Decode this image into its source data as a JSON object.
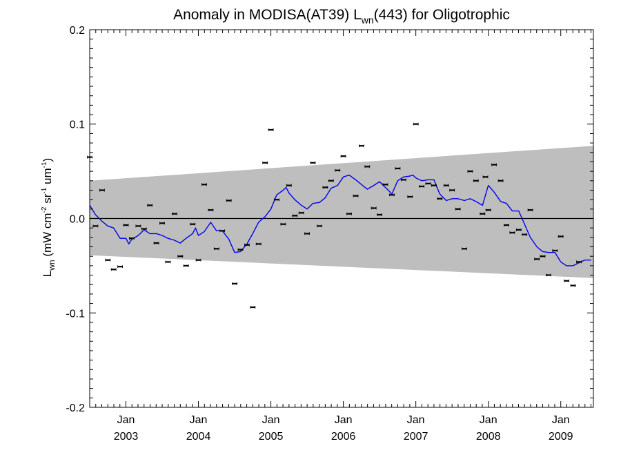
{
  "chart_data": {
    "type": "line",
    "title": {
      "prefix": "Anomaly in MODISA(AT39) L",
      "subscript": "wn",
      "suffix": "(443) for Oligotrophic"
    },
    "ylabel": {
      "main": "L",
      "sub": "wn",
      "unit_open": " (mW cm",
      "unit_exp1": "-2",
      "unit_mid1": " sr",
      "unit_exp2": "-1",
      "unit_mid2": " um",
      "unit_exp3": "-1",
      "unit_close": ")"
    },
    "xlim": [
      2002.5,
      2009.45
    ],
    "ylim": [
      -0.2,
      0.2
    ],
    "y_ticks": [
      {
        "value": 0.2,
        "label": "0.2"
      },
      {
        "value": 0.1,
        "label": "0.1"
      },
      {
        "value": 0.0,
        "label": "0.0"
      },
      {
        "value": -0.1,
        "label": "-0.1"
      },
      {
        "value": -0.2,
        "label": "-0.2"
      }
    ],
    "x_ticks": [
      {
        "value": 2003.0,
        "month": "Jan",
        "year": "2003"
      },
      {
        "value": 2004.0,
        "month": "Jan",
        "year": "2004"
      },
      {
        "value": 2005.0,
        "month": "Jan",
        "year": "2005"
      },
      {
        "value": 2006.0,
        "month": "Jan",
        "year": "2006"
      },
      {
        "value": 2007.0,
        "month": "Jan",
        "year": "2007"
      },
      {
        "value": 2008.0,
        "month": "Jan",
        "year": "2008"
      },
      {
        "value": 2009.0,
        "month": "Jan",
        "year": "2009"
      }
    ],
    "zero_line": 0.0,
    "confidence_band": {
      "color": "#bebebe",
      "x": [
        2002.5,
        2009.45
      ],
      "upper": [
        0.04,
        0.077
      ],
      "lower": [
        -0.039,
        -0.063
      ]
    },
    "series": [
      {
        "type": "line",
        "color": "#0000ee",
        "points": [
          [
            2002.5,
            0.014
          ],
          [
            2002.58,
            0.004
          ],
          [
            2002.67,
            -0.003
          ],
          [
            2002.75,
            -0.008
          ],
          [
            2002.83,
            -0.01
          ],
          [
            2002.92,
            -0.021
          ],
          [
            2003.0,
            -0.021
          ],
          [
            2003.04,
            -0.027
          ],
          [
            2003.08,
            -0.022
          ],
          [
            2003.17,
            -0.018
          ],
          [
            2003.25,
            -0.012
          ],
          [
            2003.33,
            -0.016
          ],
          [
            2003.42,
            -0.016
          ],
          [
            2003.5,
            -0.018
          ],
          [
            2003.58,
            -0.021
          ],
          [
            2003.67,
            -0.023
          ],
          [
            2003.75,
            -0.026
          ],
          [
            2003.83,
            -0.021
          ],
          [
            2003.92,
            -0.016
          ],
          [
            2003.96,
            -0.01
          ],
          [
            2004.0,
            -0.018
          ],
          [
            2004.08,
            -0.014
          ],
          [
            2004.17,
            -0.004
          ],
          [
            2004.25,
            -0.013
          ],
          [
            2004.33,
            -0.013
          ],
          [
            2004.42,
            -0.022
          ],
          [
            2004.5,
            -0.036
          ],
          [
            2004.58,
            -0.035
          ],
          [
            2004.67,
            -0.027
          ],
          [
            2004.75,
            -0.016
          ],
          [
            2004.83,
            -0.004
          ],
          [
            2004.92,
            0.002
          ],
          [
            2005.0,
            0.01
          ],
          [
            2005.08,
            0.025
          ],
          [
            2005.17,
            0.03
          ],
          [
            2005.21,
            0.033
          ],
          [
            2005.25,
            0.027
          ],
          [
            2005.33,
            0.02
          ],
          [
            2005.42,
            0.014
          ],
          [
            2005.5,
            0.01
          ],
          [
            2005.58,
            0.016
          ],
          [
            2005.67,
            0.017
          ],
          [
            2005.75,
            0.022
          ],
          [
            2005.83,
            0.032
          ],
          [
            2005.92,
            0.035
          ],
          [
            2006.0,
            0.044
          ],
          [
            2006.08,
            0.046
          ],
          [
            2006.17,
            0.041
          ],
          [
            2006.25,
            0.036
          ],
          [
            2006.33,
            0.031
          ],
          [
            2006.42,
            0.035
          ],
          [
            2006.5,
            0.039
          ],
          [
            2006.58,
            0.033
          ],
          [
            2006.67,
            0.026
          ],
          [
            2006.75,
            0.04
          ],
          [
            2006.83,
            0.044
          ],
          [
            2006.92,
            0.045
          ],
          [
            2006.96,
            0.046
          ],
          [
            2007.0,
            0.043
          ],
          [
            2007.08,
            0.04
          ],
          [
            2007.17,
            0.041
          ],
          [
            2007.25,
            0.041
          ],
          [
            2007.33,
            0.026
          ],
          [
            2007.42,
            0.019
          ],
          [
            2007.5,
            0.021
          ],
          [
            2007.58,
            0.021
          ],
          [
            2007.67,
            0.019
          ],
          [
            2007.75,
            0.021
          ],
          [
            2007.83,
            0.018
          ],
          [
            2007.92,
            0.014
          ],
          [
            2008.0,
            0.035
          ],
          [
            2008.08,
            0.028
          ],
          [
            2008.17,
            0.018
          ],
          [
            2008.25,
            0.016
          ],
          [
            2008.33,
            0.008
          ],
          [
            2008.42,
            0.008
          ],
          [
            2008.5,
            -0.006
          ],
          [
            2008.58,
            -0.02
          ],
          [
            2008.67,
            -0.03
          ],
          [
            2008.75,
            -0.035
          ],
          [
            2008.83,
            -0.036
          ],
          [
            2008.92,
            -0.036
          ],
          [
            2009.0,
            -0.046
          ],
          [
            2009.08,
            -0.05
          ],
          [
            2009.17,
            -0.05
          ],
          [
            2009.25,
            -0.047
          ],
          [
            2009.33,
            -0.044
          ],
          [
            2009.42,
            -0.044
          ]
        ]
      },
      {
        "type": "scatter",
        "color": "#000000",
        "points": [
          [
            2002.5,
            0.065
          ],
          [
            2002.58,
            -0.008
          ],
          [
            2002.67,
            0.03
          ],
          [
            2002.75,
            -0.044
          ],
          [
            2002.83,
            -0.054
          ],
          [
            2002.92,
            -0.051
          ],
          [
            2003.0,
            -0.007
          ],
          [
            2003.08,
            -0.021
          ],
          [
            2003.17,
            -0.008
          ],
          [
            2003.25,
            -0.011
          ],
          [
            2003.33,
            0.014
          ],
          [
            2003.42,
            -0.026
          ],
          [
            2003.5,
            -0.005
          ],
          [
            2003.58,
            -0.046
          ],
          [
            2003.67,
            0.005
          ],
          [
            2003.75,
            -0.04
          ],
          [
            2003.83,
            -0.05
          ],
          [
            2003.92,
            -0.006
          ],
          [
            2004.0,
            -0.044
          ],
          [
            2004.08,
            0.036
          ],
          [
            2004.17,
            0.009
          ],
          [
            2004.25,
            -0.032
          ],
          [
            2004.33,
            -0.013
          ],
          [
            2004.42,
            0.019
          ],
          [
            2004.5,
            -0.069
          ],
          [
            2004.58,
            -0.033
          ],
          [
            2004.67,
            -0.028
          ],
          [
            2004.75,
            -0.094
          ],
          [
            2004.83,
            -0.027
          ],
          [
            2004.92,
            0.059
          ],
          [
            2005.0,
            0.094
          ],
          [
            2005.08,
            0.02
          ],
          [
            2005.17,
            -0.006
          ],
          [
            2005.25,
            0.035
          ],
          [
            2005.33,
            0.003
          ],
          [
            2005.42,
            0.006
          ],
          [
            2005.5,
            -0.016
          ],
          [
            2005.58,
            0.059
          ],
          [
            2005.67,
            -0.008
          ],
          [
            2005.75,
            0.033
          ],
          [
            2005.83,
            0.04
          ],
          [
            2005.92,
            0.051
          ],
          [
            2006.0,
            0.066
          ],
          [
            2006.08,
            0.005
          ],
          [
            2006.17,
            0.024
          ],
          [
            2006.25,
            0.077
          ],
          [
            2006.33,
            0.055
          ],
          [
            2006.42,
            0.011
          ],
          [
            2006.5,
            0.004
          ],
          [
            2006.58,
            0.036
          ],
          [
            2006.67,
            0.025
          ],
          [
            2006.75,
            0.053
          ],
          [
            2006.83,
            0.041
          ],
          [
            2006.92,
            0.023
          ],
          [
            2007.0,
            0.1
          ],
          [
            2007.08,
            0.034
          ],
          [
            2007.17,
            0.037
          ],
          [
            2007.25,
            0.035
          ],
          [
            2007.33,
            0.021
          ],
          [
            2007.42,
            0.035
          ],
          [
            2007.5,
            0.03
          ],
          [
            2007.58,
            0.01
          ],
          [
            2007.67,
            -0.032
          ],
          [
            2007.75,
            0.05
          ],
          [
            2007.83,
            0.04
          ],
          [
            2007.92,
            0.005
          ],
          [
            2007.96,
            0.044
          ],
          [
            2008.0,
            0.009
          ],
          [
            2008.08,
            0.057
          ],
          [
            2008.17,
            0.04
          ],
          [
            2008.25,
            -0.007
          ],
          [
            2008.33,
            -0.015
          ],
          [
            2008.42,
            -0.012
          ],
          [
            2008.5,
            -0.017
          ],
          [
            2008.58,
            0.009
          ],
          [
            2008.67,
            -0.043
          ],
          [
            2008.75,
            -0.04
          ],
          [
            2008.83,
            -0.06
          ],
          [
            2008.92,
            -0.034
          ],
          [
            2009.0,
            -0.019
          ],
          [
            2009.08,
            -0.066
          ],
          [
            2009.17,
            -0.071
          ],
          [
            2009.25,
            -0.046
          ]
        ]
      }
    ]
  }
}
